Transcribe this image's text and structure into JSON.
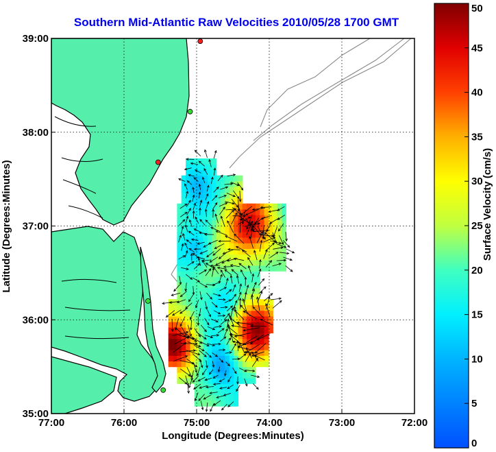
{
  "chart_data": {
    "type": "heatmap",
    "title": "Southern Mid-Atlantic Raw Velocities 2010/05/28 1700 GMT",
    "xlabel": "Longitude (Degrees:Minutes)",
    "ylabel": "Latitude (Degrees:Minutes)",
    "x_ticks": [
      "77:00",
      "76:00",
      "75:00",
      "74:00",
      "73:00",
      "72:00"
    ],
    "y_ticks": [
      "39:00",
      "38:00",
      "37:00",
      "36:00",
      "35:00"
    ],
    "xlim": [
      -77,
      -72
    ],
    "ylim": [
      35,
      39
    ],
    "grid": true,
    "colorbar": {
      "label": "Surface Velocity (cm/s)",
      "range": [
        0,
        50
      ],
      "ticks": [
        "0",
        "5",
        "10",
        "15",
        "20",
        "25",
        "30",
        "35",
        "40",
        "45",
        "50"
      ]
    },
    "stations": [
      {
        "lon": -74.95,
        "lat": 38.97,
        "color": "#ee2222"
      },
      {
        "lon": -75.09,
        "lat": 38.22,
        "color": "#33dd33"
      },
      {
        "lon": -75.53,
        "lat": 37.68,
        "color": "#ee2222"
      },
      {
        "lon": -75.67,
        "lat": 36.2,
        "color": "#33dd33"
      },
      {
        "lon": -75.46,
        "lat": 35.25,
        "color": "#33dd33"
      }
    ],
    "colors": {
      "land": "#55eeaa",
      "coast": "#000000",
      "bathymetry": "#888888",
      "title": "#0000ee"
    }
  }
}
